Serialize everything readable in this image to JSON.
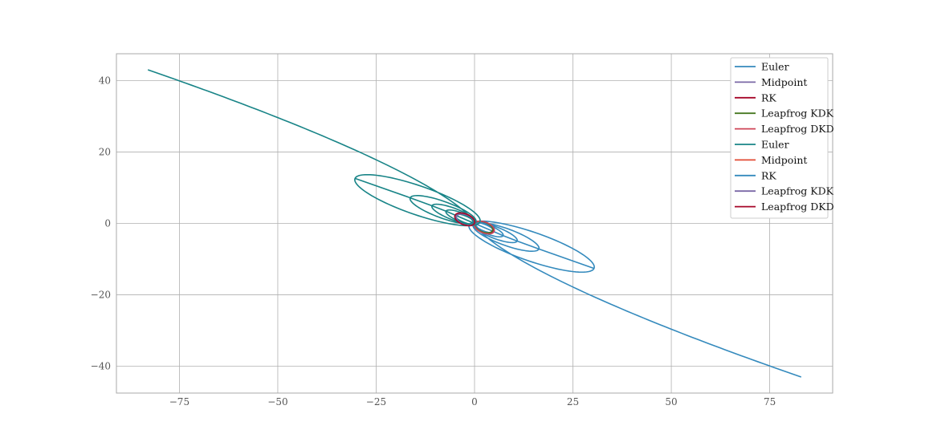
{
  "chart_data": {
    "type": "line",
    "title": "",
    "xlabel": "",
    "ylabel": "",
    "xlim": [
      -91,
      91
    ],
    "ylim": [
      -47.5,
      47.5
    ],
    "x_ticks": [
      -75,
      -50,
      -25,
      0,
      25,
      50,
      75
    ],
    "x_tick_labels": [
      "−75",
      "−50",
      "−25",
      "0",
      "25",
      "50",
      "75"
    ],
    "y_ticks": [
      40,
      20,
      0,
      -20,
      -40
    ],
    "y_tick_labels": [
      "40",
      "20",
      "0",
      "−20",
      "−40"
    ],
    "grid": true,
    "legend_position": "top-right",
    "series": [
      {
        "name": "Euler",
        "color": "#348abd",
        "spiral": {
          "dir": 1,
          "end": [
            83,
            -43
          ],
          "loops": [
            {
              "a": 17,
              "b": 4,
              "tilt": -21,
              "cx": 14.5,
              "cy": -6.5
            },
            {
              "a": 9,
              "b": 2.3,
              "tilt": -22,
              "cx": 8,
              "cy": -3.8
            },
            {
              "a": 6,
              "b": 1.6,
              "tilt": -23,
              "cx": 5.3,
              "cy": -2.6
            },
            {
              "a": 4,
              "b": 1.2,
              "tilt": -24,
              "cx": 3.6,
              "cy": -1.8
            },
            {
              "a": 2.7,
              "b": 0.9,
              "tilt": -25,
              "cx": 2.5,
              "cy": -1.2
            }
          ]
        }
      },
      {
        "name": "Midpoint",
        "color": "#7a68a6",
        "orbit": {
          "dir": 1,
          "a": 2.6,
          "b": 1.5,
          "tilt": -25,
          "cx": 2.4,
          "cy": -1.1
        }
      },
      {
        "name": "RK",
        "color": "#a60628",
        "orbit": {
          "dir": 1,
          "a": 2.5,
          "b": 1.4,
          "tilt": -25,
          "cx": 2.35,
          "cy": -1.05
        }
      },
      {
        "name": "Leapfrog KDK",
        "color": "#467821",
        "orbit": {
          "dir": 1,
          "a": 2.45,
          "b": 1.38,
          "tilt": -25,
          "cx": 2.3,
          "cy": -1.0
        }
      },
      {
        "name": "Leapfrog DKD",
        "color": "#cf4457",
        "orbit": {
          "dir": 1,
          "a": 2.7,
          "b": 1.5,
          "tilt": -25,
          "cx": 2.5,
          "cy": -1.15
        }
      },
      {
        "name": "Euler",
        "color": "#188487",
        "spiral": {
          "dir": -1,
          "end": [
            -83,
            43
          ],
          "loops": [
            {
              "a": 17,
              "b": 4,
              "tilt": -21,
              "cx": 14.5,
              "cy": -6.5
            },
            {
              "a": 9,
              "b": 2.3,
              "tilt": -22,
              "cx": 8,
              "cy": -3.8
            },
            {
              "a": 6,
              "b": 1.6,
              "tilt": -23,
              "cx": 5.3,
              "cy": -2.6
            },
            {
              "a": 4,
              "b": 1.2,
              "tilt": -24,
              "cx": 3.6,
              "cy": -1.8
            },
            {
              "a": 2.7,
              "b": 0.9,
              "tilt": -25,
              "cx": 2.5,
              "cy": -1.2
            }
          ]
        }
      },
      {
        "name": "Midpoint",
        "color": "#e24a33",
        "orbit": {
          "dir": -1,
          "a": 2.6,
          "b": 1.5,
          "tilt": -25,
          "cx": 2.4,
          "cy": -1.1
        }
      },
      {
        "name": "RK",
        "color": "#348abd",
        "orbit": {
          "dir": -1,
          "a": 2.5,
          "b": 1.4,
          "tilt": -25,
          "cx": 2.35,
          "cy": -1.05
        }
      },
      {
        "name": "Leapfrog KDK",
        "color": "#7a68a6",
        "orbit": {
          "dir": -1,
          "a": 2.45,
          "b": 1.38,
          "tilt": -25,
          "cx": 2.3,
          "cy": -1.0
        }
      },
      {
        "name": "Leapfrog DKD",
        "color": "#a60628",
        "orbit": {
          "dir": -1,
          "a": 2.7,
          "b": 1.5,
          "tilt": -25,
          "cx": 2.5,
          "cy": -1.15
        }
      }
    ]
  }
}
